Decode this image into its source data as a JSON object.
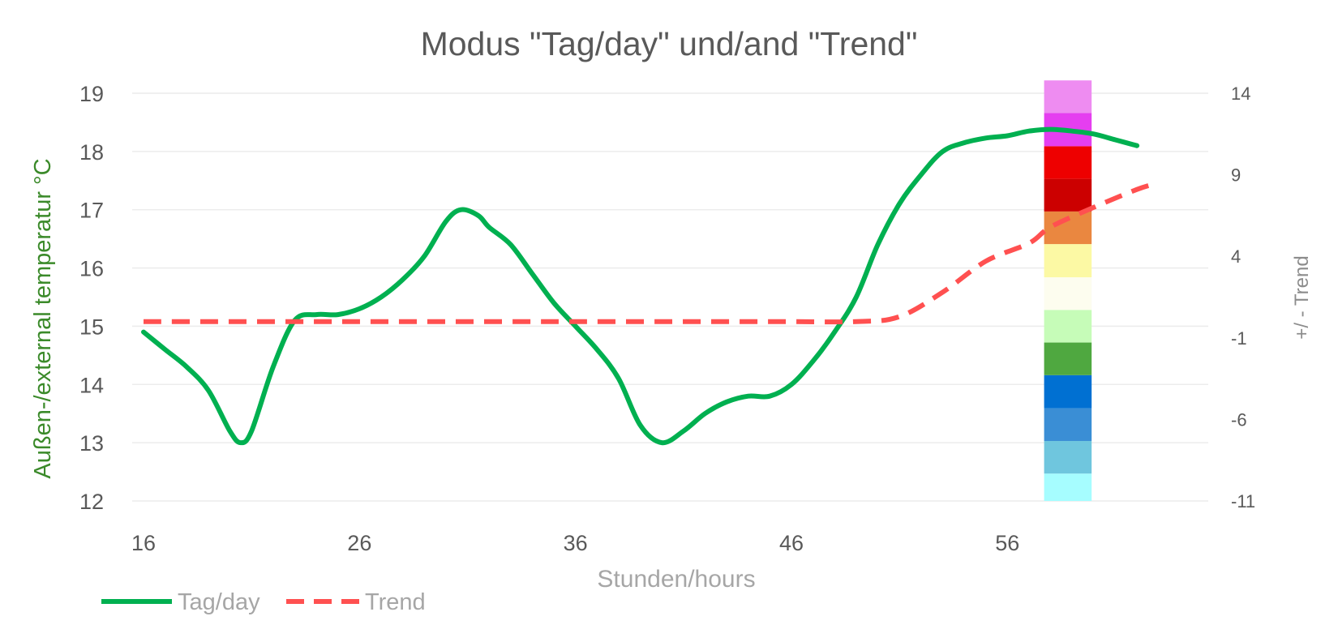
{
  "chart_data": {
    "type": "line",
    "title": "Modus \"Tag/day\" und/and \"Trend\"",
    "xlabel": "Stunden/hours",
    "ylabel": "Außen-/external temperatur °C",
    "y2label": "+/ - Trend",
    "xlim": [
      16,
      65
    ],
    "ylim": [
      12,
      19
    ],
    "y2lim": [
      -11,
      14
    ],
    "x_ticks": [
      16,
      26,
      36,
      46,
      56
    ],
    "y_ticks": [
      12,
      13,
      14,
      15,
      16,
      17,
      18,
      19
    ],
    "y2_ticks": [
      -11,
      -6,
      -1,
      4,
      9,
      14
    ],
    "grid": true,
    "legend_position": "bottom-left",
    "series": [
      {
        "name": "Tag/day",
        "axis": "left",
        "color": "#00b050",
        "style": "solid",
        "points": [
          [
            16,
            14.9
          ],
          [
            17,
            14.6
          ],
          [
            18,
            14.3
          ],
          [
            19,
            13.9
          ],
          [
            20,
            13.2
          ],
          [
            20.5,
            13.0
          ],
          [
            21,
            13.2
          ],
          [
            22,
            14.3
          ],
          [
            23,
            15.1
          ],
          [
            24,
            15.2
          ],
          [
            25,
            15.2
          ],
          [
            26,
            15.3
          ],
          [
            27,
            15.5
          ],
          [
            28,
            15.8
          ],
          [
            29,
            16.2
          ],
          [
            30,
            16.8
          ],
          [
            30.7,
            17.0
          ],
          [
            31.5,
            16.9
          ],
          [
            32,
            16.7
          ],
          [
            33,
            16.4
          ],
          [
            34,
            15.9
          ],
          [
            35,
            15.4
          ],
          [
            36,
            15.0
          ],
          [
            37,
            14.6
          ],
          [
            38,
            14.1
          ],
          [
            39,
            13.3
          ],
          [
            40,
            13.0
          ],
          [
            41,
            13.2
          ],
          [
            42,
            13.5
          ],
          [
            43,
            13.7
          ],
          [
            44,
            13.8
          ],
          [
            45,
            13.8
          ],
          [
            46,
            14.0
          ],
          [
            47,
            14.4
          ],
          [
            48,
            14.9
          ],
          [
            49,
            15.5
          ],
          [
            50,
            16.4
          ],
          [
            51,
            17.1
          ],
          [
            52,
            17.6
          ],
          [
            53,
            18.0
          ],
          [
            54,
            18.15
          ],
          [
            55,
            18.23
          ],
          [
            56,
            18.27
          ],
          [
            57,
            18.35
          ],
          [
            58,
            18.38
          ],
          [
            59,
            18.35
          ],
          [
            60,
            18.3
          ],
          [
            61,
            18.2
          ],
          [
            62,
            18.1
          ]
        ]
      },
      {
        "name": "Trend",
        "axis": "right",
        "color": "#ff5050",
        "style": "dashed",
        "points": [
          [
            16,
            0
          ],
          [
            25,
            0
          ],
          [
            35,
            0
          ],
          [
            45,
            0
          ],
          [
            49,
            0
          ],
          [
            51,
            0.3
          ],
          [
            53,
            1.8
          ],
          [
            55,
            3.7
          ],
          [
            57,
            4.8
          ],
          [
            58,
            5.8
          ],
          [
            60,
            7.0
          ],
          [
            62,
            8.1
          ],
          [
            63,
            8.5
          ]
        ]
      }
    ],
    "color_scale": {
      "x_range": [
        57.7,
        59.9
      ],
      "bands": [
        {
          "y_from": 12.0,
          "y_to": 12.47,
          "color": "#a6fdff"
        },
        {
          "y_from": 12.47,
          "y_to": 13.03,
          "color": "#6fc6de"
        },
        {
          "y_from": 13.03,
          "y_to": 13.59,
          "color": "#3a8ed5"
        },
        {
          "y_from": 13.59,
          "y_to": 14.16,
          "color": "#0070d2"
        },
        {
          "y_from": 14.16,
          "y_to": 14.72,
          "color": "#4fa840"
        },
        {
          "y_from": 14.72,
          "y_to": 15.28,
          "color": "#c6fcb8"
        },
        {
          "y_from": 15.28,
          "y_to": 15.84,
          "color": "#fdfdef"
        },
        {
          "y_from": 15.84,
          "y_to": 16.41,
          "color": "#fcf9a4"
        },
        {
          "y_from": 16.41,
          "y_to": 16.97,
          "color": "#ea8740"
        },
        {
          "y_from": 16.97,
          "y_to": 17.53,
          "color": "#cc0000"
        },
        {
          "y_from": 17.53,
          "y_to": 18.09,
          "color": "#ee0000"
        },
        {
          "y_from": 18.09,
          "y_to": 18.66,
          "color": "#e53ef0"
        },
        {
          "y_from": 18.66,
          "y_to": 19.22,
          "color": "#ee8cf1"
        }
      ]
    }
  },
  "legend": {
    "items": [
      {
        "label": "Tag/day",
        "color": "#00b050",
        "style": "solid"
      },
      {
        "label": "Trend",
        "color": "#ff5050",
        "style": "dashed"
      }
    ]
  }
}
